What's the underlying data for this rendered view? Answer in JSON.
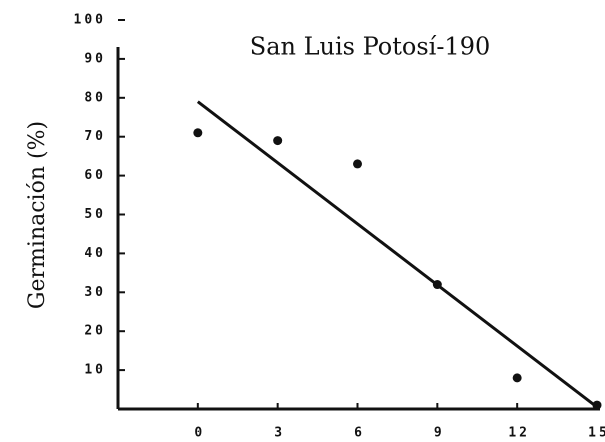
{
  "chart_data": {
    "type": "scatter",
    "title": "San Luis Potosí-190",
    "y_label": "Germinación (%)",
    "x": [
      0,
      3,
      6,
      9,
      12,
      15
    ],
    "values": [
      71,
      69,
      63,
      32,
      8,
      1
    ],
    "color": "#111111",
    "fit_line": {
      "x": [
        0,
        15
      ],
      "values": [
        79,
        0.5
      ]
    },
    "xlim": [
      -3,
      15
    ],
    "xticks": [
      0,
      3,
      6,
      9,
      12,
      15
    ],
    "ylim": [
      0,
      100
    ],
    "yticks": [
      10,
      20,
      30,
      40,
      50,
      60,
      70,
      80,
      90,
      100
    ],
    "grid": false
  }
}
